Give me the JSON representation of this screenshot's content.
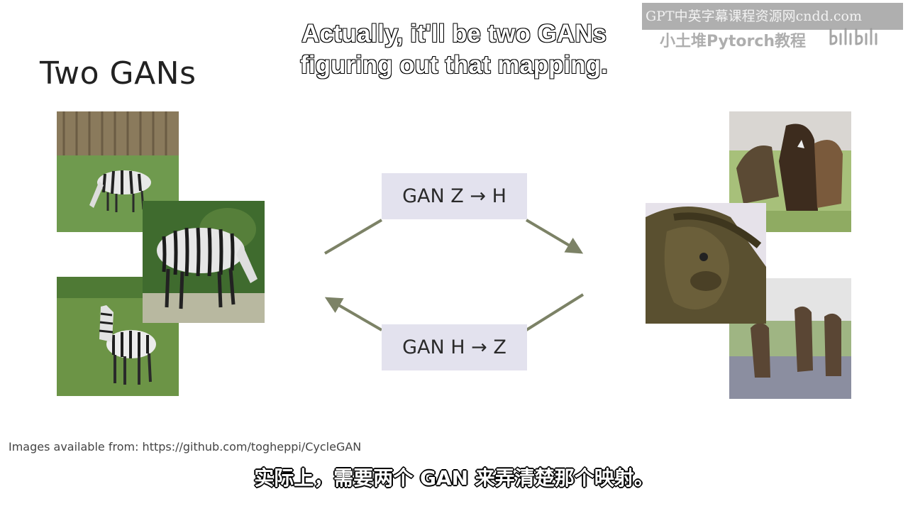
{
  "slide": {
    "title": "Two GANs",
    "credit": "Images available from: https://github.com/togheppi/CycleGAN"
  },
  "diagram": {
    "top_box": "GAN Z → H",
    "bottom_box": "GAN H → Z",
    "arrow_color": "#7c8266",
    "box_color": "#e3e2ee"
  },
  "subtitles": {
    "english_line1": "Actually, it'll be two GANs",
    "english_line2": "figuring out that mapping.",
    "chinese": "实际上，需要两个 GAN 来弄清楚那个映射。"
  },
  "watermark": {
    "line1": "GPT中英字幕课程资源网cndd.com",
    "line2": "小土堆Pytorch教程",
    "logo": "bilibili"
  },
  "images": {
    "left_group": [
      "zebra-photo-1",
      "zebra-photo-2",
      "zebra-photo-3"
    ],
    "right_group": [
      "horse-photo-1",
      "horse-photo-2",
      "horse-photo-3"
    ]
  }
}
